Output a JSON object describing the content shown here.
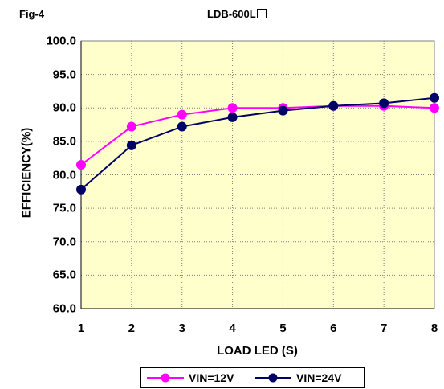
{
  "header": {
    "fig_label": "Fig-4",
    "title": "LDB-600L"
  },
  "chart_data": {
    "type": "line",
    "title": "LDB-600L",
    "xlabel": "LOAD LED (S)",
    "ylabel": "EFFICIENCY(%)",
    "x": [
      1,
      2,
      3,
      4,
      5,
      6,
      7,
      8
    ],
    "x_tick_labels": [
      "1",
      "2",
      "3",
      "4",
      "5",
      "6",
      "7",
      "8"
    ],
    "ylim": [
      60,
      100
    ],
    "y_ticks": [
      60,
      65,
      70,
      75,
      80,
      85,
      90,
      95,
      100
    ],
    "y_tick_labels": [
      "60.0",
      "65.0",
      "70.0",
      "75.0",
      "80.0",
      "85.0",
      "90.0",
      "95.0",
      "100.0"
    ],
    "grid": true,
    "legend_position": "bottom",
    "plot_background": "#ffffcc",
    "series": [
      {
        "name": "VIN=12V",
        "color": "#ff00ff",
        "marker": "circle",
        "values": [
          81.5,
          87.2,
          89.0,
          90.0,
          90.0,
          90.3,
          90.3,
          90.0
        ]
      },
      {
        "name": "VIN=24V",
        "color": "#000066",
        "marker": "circle",
        "values": [
          77.8,
          84.4,
          87.2,
          88.6,
          89.6,
          90.3,
          90.7,
          91.5
        ]
      }
    ]
  }
}
